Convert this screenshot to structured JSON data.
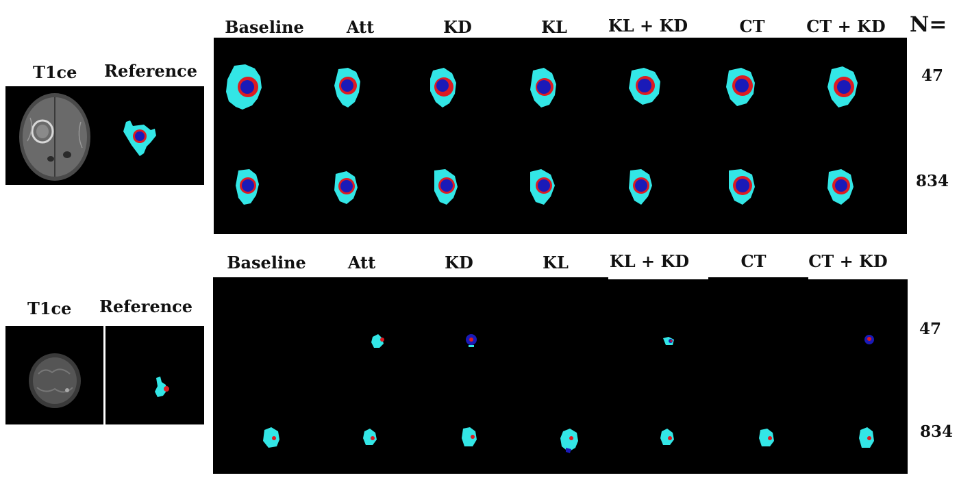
{
  "n_header": "N=",
  "legend_colors": {
    "edema": "#33e6e6",
    "enhancing": "#dd1b22",
    "necrotic": "#1a1ab8",
    "background": "#000000"
  },
  "case1": {
    "input_labels": {
      "t1ce": "T1ce",
      "reference": "Reference"
    },
    "method_labels": [
      "Baseline",
      "Att",
      "KD",
      "KL",
      "KL + KD",
      "CT",
      "CT + KD"
    ],
    "n_values": [
      "47",
      "834"
    ]
  },
  "case2": {
    "input_labels": {
      "t1ce": "T1ce",
      "reference": "Reference"
    },
    "method_labels": [
      "Baseline",
      "Att",
      "KD",
      "KL",
      "KL + KD",
      "CT",
      "CT + KD"
    ],
    "n_values": [
      "47",
      "834"
    ]
  }
}
